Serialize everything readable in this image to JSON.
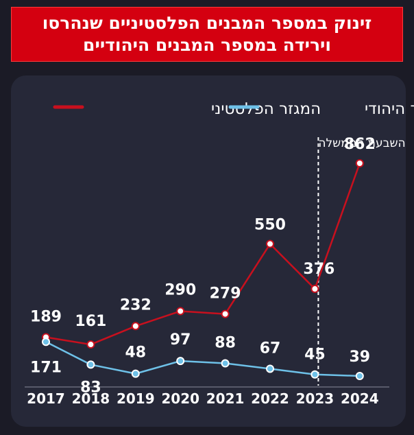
{
  "headline": {
    "line1": "זינוק במספר המבנים הפלסטיניים שנהרסו",
    "line2": "וירידה במספר המבנים היהודיים"
  },
  "colors": {
    "background": "#1b1b26",
    "headline_bg": "#d40010",
    "panel_bg": "#262838",
    "palestinian": "#c8101e",
    "jewish": "#6ec1e8",
    "text": "#ffffff"
  },
  "chart_data": {
    "type": "line",
    "categories": [
      "2017",
      "2018",
      "2019",
      "2020",
      "2021",
      "2022",
      "2023",
      "2024"
    ],
    "series": [
      {
        "name": "המגזר הפלסטיני",
        "values": [
          189,
          161,
          232,
          290,
          279,
          550,
          376,
          862
        ]
      },
      {
        "name": "המגזר היהודי",
        "values": [
          171,
          83,
          48,
          97,
          88,
          67,
          45,
          39
        ]
      }
    ],
    "annotation": {
      "label": "השבעת הממשלה",
      "category": "2023"
    },
    "legend_position": "top",
    "ylim": [
      0,
      900
    ],
    "grid": false
  }
}
